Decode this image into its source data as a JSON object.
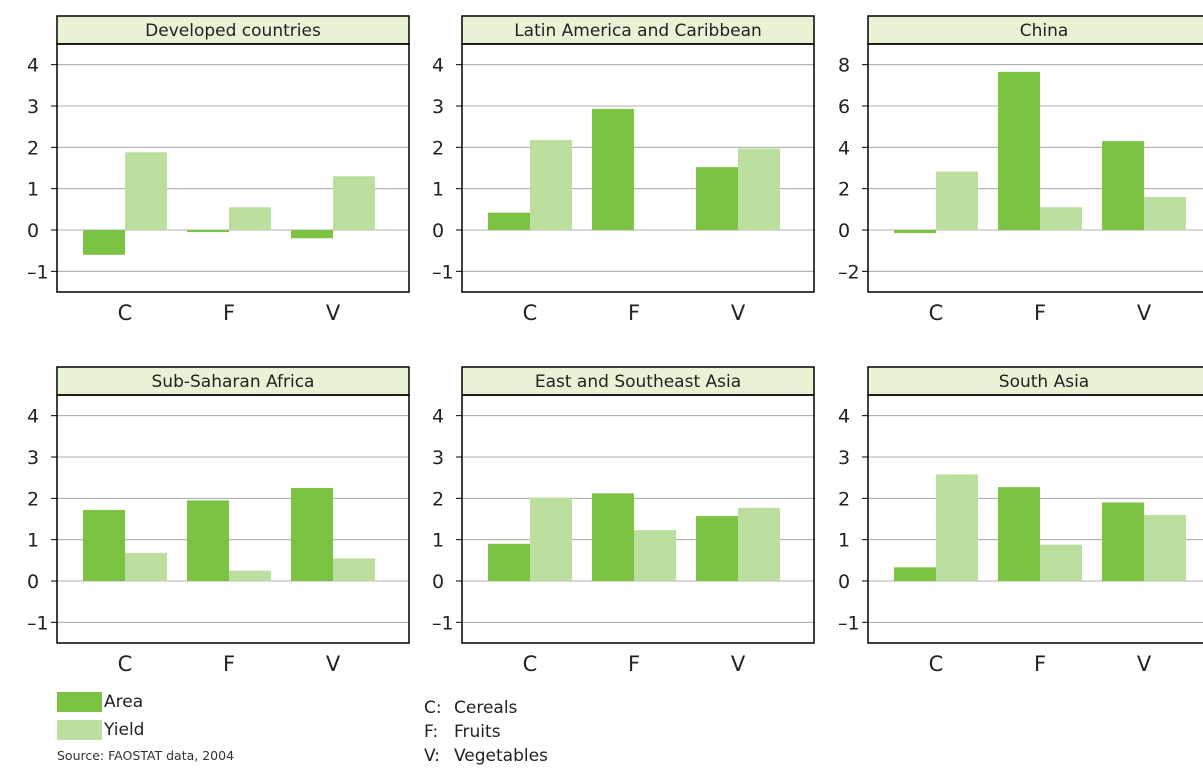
{
  "colors": {
    "area": "#7cc243",
    "yield": "#bcde9e",
    "header_fill": "#e7f3d4",
    "frame": "#000000",
    "grid": "#999999"
  },
  "legend": {
    "area_label": "Area",
    "yield_label": "Yield"
  },
  "source": "Source: FAOSTAT data, 2004",
  "key": [
    {
      "code": "C:",
      "text": "Cereals"
    },
    {
      "code": "F:",
      "text": "Fruits"
    },
    {
      "code": "V:",
      "text": "Vegetables"
    }
  ],
  "chart_data": [
    {
      "type": "bar",
      "title": "Developed countries",
      "categories": [
        "C",
        "F",
        "V"
      ],
      "series": [
        {
          "name": "Area",
          "values": [
            -0.6,
            -0.05,
            -0.2
          ]
        },
        {
          "name": "Yield",
          "values": [
            1.88,
            0.55,
            1.3
          ]
        }
      ],
      "ylim": [
        -1.5,
        4.5
      ],
      "yticks": [
        -1,
        0,
        1,
        2,
        3,
        4
      ],
      "ytick_labels": [
        "–1",
        "0",
        "1",
        "2",
        "3",
        "4"
      ]
    },
    {
      "type": "bar",
      "title": "Latin America and Caribbean",
      "categories": [
        "C",
        "F",
        "V"
      ],
      "series": [
        {
          "name": "Area",
          "values": [
            0.42,
            2.93,
            1.52
          ]
        },
        {
          "name": "Yield",
          "values": [
            2.18,
            0,
            1.97
          ]
        }
      ],
      "ylim": [
        -1.5,
        4.5
      ],
      "yticks": [
        -1,
        0,
        1,
        2,
        3,
        4
      ],
      "ytick_labels": [
        "–1",
        "0",
        "1",
        "2",
        "3",
        "4"
      ]
    },
    {
      "type": "bar",
      "title": "China",
      "categories": [
        "C",
        "F",
        "V"
      ],
      "series": [
        {
          "name": "Area",
          "values": [
            -0.15,
            7.65,
            4.3
          ]
        },
        {
          "name": "Yield",
          "values": [
            2.83,
            1.1,
            1.6
          ]
        }
      ],
      "ylim": [
        -3,
        9
      ],
      "yticks": [
        -2,
        0,
        2,
        4,
        6,
        8
      ],
      "ytick_labels": [
        "–2",
        "0",
        "2",
        "4",
        "6",
        "8"
      ]
    },
    {
      "type": "bar",
      "title": "Sub-Saharan Africa",
      "categories": [
        "C",
        "F",
        "V"
      ],
      "series": [
        {
          "name": "Area",
          "values": [
            1.72,
            1.95,
            2.25
          ]
        },
        {
          "name": "Yield",
          "values": [
            0.68,
            0.25,
            0.55
          ]
        }
      ],
      "ylim": [
        -1.5,
        4.5
      ],
      "yticks": [
        -1,
        0,
        1,
        2,
        3,
        4
      ],
      "ytick_labels": [
        "–1",
        "0",
        "1",
        "2",
        "3",
        "4"
      ]
    },
    {
      "type": "bar",
      "title": "East and Southeast Asia",
      "categories": [
        "C",
        "F",
        "V"
      ],
      "series": [
        {
          "name": "Area",
          "values": [
            0.9,
            2.12,
            1.57
          ]
        },
        {
          "name": "Yield",
          "values": [
            2.02,
            1.23,
            1.77
          ]
        }
      ],
      "ylim": [
        -1.5,
        4.5
      ],
      "yticks": [
        -1,
        0,
        1,
        2,
        3,
        4
      ],
      "ytick_labels": [
        "–1",
        "0",
        "1",
        "2",
        "3",
        "4"
      ]
    },
    {
      "type": "bar",
      "title": "South Asia",
      "categories": [
        "C",
        "F",
        "V"
      ],
      "series": [
        {
          "name": "Area",
          "values": [
            0.33,
            2.27,
            1.9
          ]
        },
        {
          "name": "Yield",
          "values": [
            2.58,
            0.88,
            1.6
          ]
        }
      ],
      "ylim": [
        -1.5,
        4.5
      ],
      "yticks": [
        -1,
        0,
        1,
        2,
        3,
        4
      ],
      "ytick_labels": [
        "–1",
        "0",
        "1",
        "2",
        "3",
        "4"
      ]
    }
  ]
}
